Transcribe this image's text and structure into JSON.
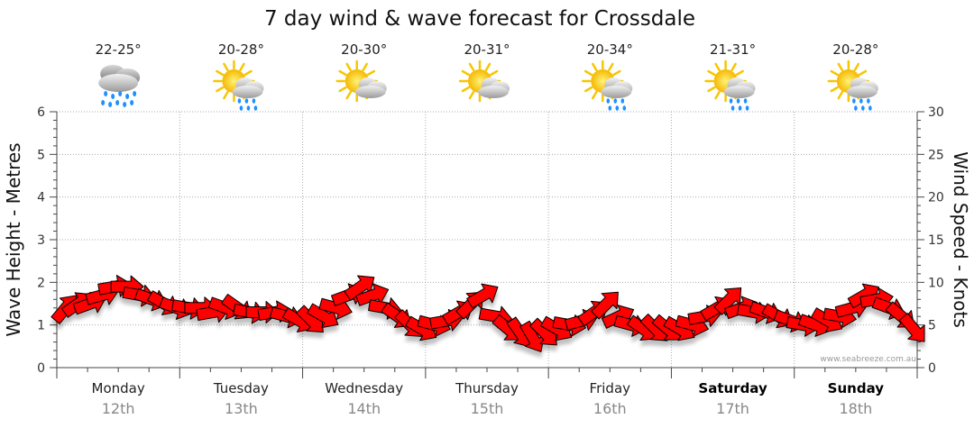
{
  "chart_data": {
    "type": "line",
    "title": "7 day wind & wave forecast for Crossdale",
    "ylabel_left": "Wave Height - Metres",
    "ylabel_right": "Wind Speed - Knots",
    "ylim_left": [
      0,
      6
    ],
    "ylim_right": [
      0,
      30
    ],
    "yticks_left": [
      "0",
      "1",
      "2",
      "3",
      "4",
      "5",
      "6"
    ],
    "yticks_right": [
      "0",
      "5",
      "10",
      "15",
      "20",
      "25",
      "30"
    ],
    "grid": true,
    "watermark": "www.seabreeze.com.au",
    "days": [
      {
        "day": "Monday",
        "date": "12th",
        "temp": "22-25°",
        "icon": "rain-cloud-icon",
        "bold": false
      },
      {
        "day": "Tuesday",
        "date": "13th",
        "temp": "20-28°",
        "icon": "sun-cloud-rain-icon",
        "bold": false
      },
      {
        "day": "Wednesday",
        "date": "14th",
        "temp": "20-30°",
        "icon": "sun-cloud-icon",
        "bold": false
      },
      {
        "day": "Thursday",
        "date": "15th",
        "temp": "20-31°",
        "icon": "sun-cloud-icon",
        "bold": false
      },
      {
        "day": "Friday",
        "date": "16th",
        "temp": "20-34°",
        "icon": "sun-cloud-rain-icon",
        "bold": false
      },
      {
        "day": "Saturday",
        "date": "17th",
        "temp": "21-31°",
        "icon": "sun-cloud-rain-icon",
        "bold": true
      },
      {
        "day": "Sunday",
        "date": "18th",
        "temp": "20-28°",
        "icon": "sun-cloud-rain-icon",
        "bold": true
      }
    ],
    "series": [
      {
        "name": "Wind Speed",
        "axis": "right",
        "color": "#ff0000",
        "x_day": [
          0.0,
          0.1,
          0.2,
          0.3,
          0.4,
          0.5,
          0.6,
          0.7,
          0.8,
          0.9,
          1.0,
          1.1,
          1.2,
          1.3,
          1.4,
          1.5,
          1.6,
          1.7,
          1.8,
          1.9,
          2.0,
          2.1,
          2.2,
          2.3,
          2.4,
          2.5,
          2.6,
          2.7,
          2.8,
          2.9,
          3.0,
          3.1,
          3.2,
          3.3,
          3.4,
          3.5,
          3.6,
          3.7,
          3.8,
          3.9,
          4.0,
          4.1,
          4.2,
          4.3,
          4.4,
          4.5,
          4.6,
          4.7,
          4.8,
          4.9,
          5.0,
          5.1,
          5.2,
          5.3,
          5.4,
          5.5,
          5.6,
          5.7,
          5.8,
          5.9,
          6.0,
          6.1,
          6.2,
          6.3,
          6.4,
          6.5,
          6.6,
          6.7,
          6.8,
          6.9
        ],
        "values": [
          7,
          7.5,
          7.5,
          8.5,
          9.5,
          9.5,
          8.5,
          8,
          7.5,
          7,
          7,
          7,
          6.5,
          7,
          7,
          6.5,
          6.5,
          6.5,
          6,
          5.5,
          5.5,
          6,
          7,
          8.5,
          9.5,
          8.5,
          7,
          6,
          5,
          4.5,
          5,
          5.5,
          6.5,
          7.5,
          8.5,
          6,
          4.5,
          4,
          3.5,
          4,
          4.5,
          5,
          5.5,
          6.5,
          7.5,
          6,
          5,
          4.5,
          4.5,
          4.5,
          4.5,
          5,
          6,
          7,
          8,
          7,
          6.5,
          6.5,
          6,
          5.5,
          5,
          5,
          5.5,
          6,
          7,
          8.5,
          8,
          7,
          6,
          4.5
        ]
      }
    ]
  }
}
